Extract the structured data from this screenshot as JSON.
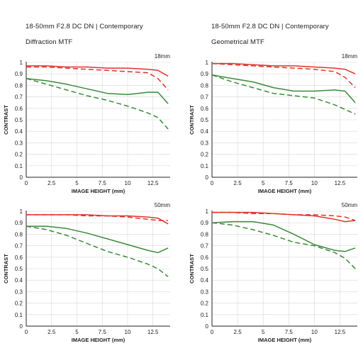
{
  "headers": [
    {
      "title": "18-50mm F2.8 DC DN | Contemporary",
      "subtitle": "Diffraction MTF"
    },
    {
      "title": "18-50mm F2.8 DC DN | Contemporary",
      "subtitle": "Geometrical MTF"
    }
  ],
  "colors": {
    "sagittal_red": "#e0332b",
    "meridional_red": "#e0332b",
    "sagittal_green": "#3a8a3a",
    "meridional_green": "#3a8a3a",
    "axis": "#222222",
    "grid": "#d8d8d8"
  },
  "chart_data": [
    {
      "type": "line",
      "title": "18mm",
      "xlabel": "IMAGE HEIGHT (mm)",
      "ylabel": "CONTRAST",
      "xlim": [
        0,
        14.2
      ],
      "ylim": [
        0,
        1
      ],
      "xticks": [
        0,
        2.5,
        5,
        7.5,
        10,
        12.5
      ],
      "xtick_labels": [
        "0",
        "2.5",
        "5",
        "7.5",
        "10",
        "12.5"
      ],
      "yticks": [
        0,
        0.1,
        0.2,
        0.3,
        0.4,
        0.5,
        0.6,
        0.7,
        0.8,
        0.9,
        1
      ],
      "ytick_labels": [
        "0",
        "0.1",
        "0.2",
        "0.3",
        "0.4",
        "0.5",
        "0.6",
        "0.7",
        "0.8",
        "0.9",
        "1"
      ],
      "grid": true,
      "x": [
        0,
        2,
        4,
        6,
        8,
        10,
        12,
        13,
        14
      ],
      "series": [
        {
          "color": "#e0332b",
          "dash": "solid",
          "values": [
            0.97,
            0.97,
            0.96,
            0.96,
            0.95,
            0.95,
            0.94,
            0.93,
            0.88
          ]
        },
        {
          "color": "#e0332b",
          "dash": "dashed",
          "values": [
            0.96,
            0.96,
            0.95,
            0.94,
            0.93,
            0.92,
            0.91,
            0.86,
            0.76
          ]
        },
        {
          "color": "#3a8a3a",
          "dash": "solid",
          "values": [
            0.86,
            0.84,
            0.81,
            0.77,
            0.73,
            0.72,
            0.74,
            0.74,
            0.64
          ]
        },
        {
          "color": "#3a8a3a",
          "dash": "dashed",
          "values": [
            0.86,
            0.81,
            0.76,
            0.71,
            0.67,
            0.62,
            0.56,
            0.52,
            0.42
          ]
        }
      ]
    },
    {
      "type": "line",
      "title": "18mm",
      "xlabel": "IMAGE HEIGHT (mm)",
      "ylabel": "CONTRAST",
      "xlim": [
        0,
        14.2
      ],
      "ylim": [
        0,
        1
      ],
      "xticks": [
        0,
        2.5,
        5,
        7.5,
        10,
        12.5
      ],
      "xtick_labels": [
        "0",
        "2.5",
        "5",
        "7.5",
        "10",
        "12.5"
      ],
      "yticks": [
        0,
        0.1,
        0.2,
        0.3,
        0.4,
        0.5,
        0.6,
        0.7,
        0.8,
        0.9,
        1
      ],
      "ytick_labels": [
        "0",
        "0.1",
        "0.2",
        "0.3",
        "0.4",
        "0.5",
        "0.6",
        "0.7",
        "0.8",
        "0.9",
        "1"
      ],
      "grid": true,
      "x": [
        0,
        2,
        4,
        6,
        8,
        10,
        12,
        13,
        14
      ],
      "series": [
        {
          "color": "#e0332b",
          "dash": "solid",
          "values": [
            0.99,
            0.99,
            0.98,
            0.97,
            0.97,
            0.96,
            0.95,
            0.94,
            0.9
          ]
        },
        {
          "color": "#e0332b",
          "dash": "dashed",
          "values": [
            0.99,
            0.98,
            0.97,
            0.96,
            0.95,
            0.94,
            0.92,
            0.87,
            0.78
          ]
        },
        {
          "color": "#3a8a3a",
          "dash": "solid",
          "values": [
            0.89,
            0.86,
            0.83,
            0.78,
            0.75,
            0.75,
            0.76,
            0.75,
            0.65
          ]
        },
        {
          "color": "#3a8a3a",
          "dash": "dashed",
          "values": [
            0.89,
            0.83,
            0.78,
            0.73,
            0.71,
            0.69,
            0.63,
            0.59,
            0.55
          ]
        }
      ]
    },
    {
      "type": "line",
      "title": "50mm",
      "xlabel": "IMAGE HEIGHT (mm)",
      "ylabel": "CONTRAST",
      "xlim": [
        0,
        14.2
      ],
      "ylim": [
        0,
        1
      ],
      "xticks": [
        0,
        2.5,
        5,
        7.5,
        10,
        12.5
      ],
      "xtick_labels": [
        "0",
        "2.5",
        "5",
        "7.5",
        "10",
        "12.5"
      ],
      "yticks": [
        0,
        0.1,
        0.2,
        0.3,
        0.4,
        0.5,
        0.6,
        0.7,
        0.8,
        0.9,
        1
      ],
      "ytick_labels": [
        "0",
        "0.1",
        "0.2",
        "0.3",
        "0.4",
        "0.5",
        "0.6",
        "0.7",
        "0.8",
        "0.9",
        "1"
      ],
      "grid": true,
      "x": [
        0,
        2,
        4,
        6,
        8,
        10,
        12,
        13,
        14
      ],
      "series": [
        {
          "color": "#e0332b",
          "dash": "solid",
          "values": [
            0.97,
            0.97,
            0.97,
            0.97,
            0.96,
            0.96,
            0.95,
            0.94,
            0.89
          ]
        },
        {
          "color": "#e0332b",
          "dash": "dashed",
          "values": [
            0.97,
            0.97,
            0.97,
            0.96,
            0.96,
            0.95,
            0.93,
            0.92,
            0.92
          ]
        },
        {
          "color": "#3a8a3a",
          "dash": "solid",
          "values": [
            0.87,
            0.87,
            0.85,
            0.81,
            0.76,
            0.71,
            0.66,
            0.64,
            0.68
          ]
        },
        {
          "color": "#3a8a3a",
          "dash": "dashed",
          "values": [
            0.87,
            0.84,
            0.79,
            0.72,
            0.65,
            0.6,
            0.54,
            0.5,
            0.43
          ]
        }
      ]
    },
    {
      "type": "line",
      "title": "50mm",
      "xlabel": "IMAGE HEIGHT (mm)",
      "ylabel": "CONTRAST",
      "xlim": [
        0,
        14.2
      ],
      "ylim": [
        0,
        1
      ],
      "xticks": [
        0,
        2.5,
        5,
        7.5,
        10,
        12.5
      ],
      "xtick_labels": [
        "0",
        "2.5",
        "5",
        "7.5",
        "10",
        "12.5"
      ],
      "yticks": [
        0,
        0.1,
        0.2,
        0.3,
        0.4,
        0.5,
        0.6,
        0.7,
        0.8,
        0.9,
        1
      ],
      "ytick_labels": [
        "0",
        "0.1",
        "0.2",
        "0.3",
        "0.4",
        "0.5",
        "0.6",
        "0.7",
        "0.8",
        "0.9",
        "1"
      ],
      "grid": true,
      "x": [
        0,
        2,
        4,
        6,
        8,
        10,
        12,
        13,
        14
      ],
      "series": [
        {
          "color": "#e0332b",
          "dash": "solid",
          "values": [
            0.99,
            0.99,
            0.99,
            0.98,
            0.97,
            0.96,
            0.93,
            0.91,
            0.92
          ]
        },
        {
          "color": "#e0332b",
          "dash": "dashed",
          "values": [
            0.99,
            0.99,
            0.98,
            0.98,
            0.97,
            0.97,
            0.96,
            0.95,
            0.92
          ]
        },
        {
          "color": "#3a8a3a",
          "dash": "solid",
          "values": [
            0.9,
            0.91,
            0.91,
            0.88,
            0.8,
            0.71,
            0.66,
            0.65,
            0.68
          ]
        },
        {
          "color": "#3a8a3a",
          "dash": "dashed",
          "values": [
            0.9,
            0.88,
            0.84,
            0.79,
            0.73,
            0.7,
            0.64,
            0.59,
            0.5
          ]
        }
      ]
    }
  ]
}
